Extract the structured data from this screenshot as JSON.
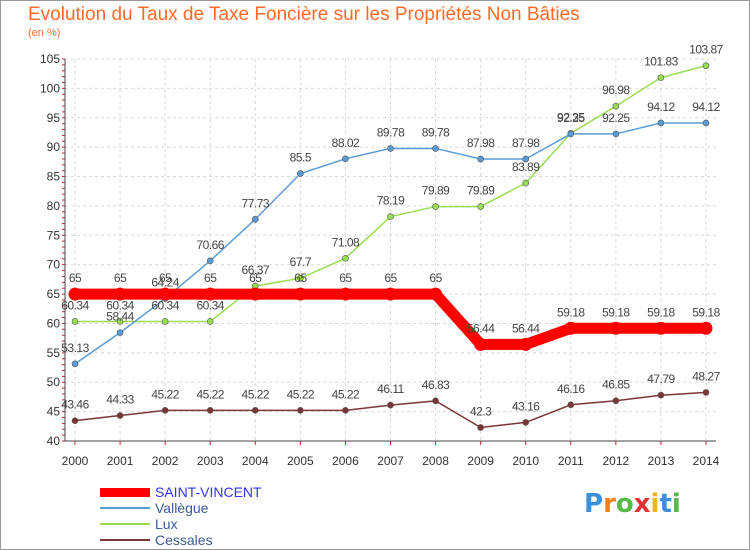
{
  "chart_data": {
    "type": "line",
    "title": "Evolution du Taux de Taxe Foncière sur les Propriétés Non Bâties",
    "subtitle": "(en %)",
    "x": [
      "2000",
      "2001",
      "2002",
      "2003",
      "2004",
      "2005",
      "2006",
      "2007",
      "2008",
      "2009",
      "2010",
      "2011",
      "2012",
      "2013",
      "2014"
    ],
    "ylim": [
      40,
      105
    ],
    "yticks": [
      40,
      45,
      50,
      55,
      60,
      65,
      70,
      75,
      80,
      85,
      90,
      95,
      100,
      105
    ],
    "grid": true,
    "legend_position": "bottom-left",
    "series": [
      {
        "name": "SAINT-VINCENT",
        "color": "#ff0000",
        "values": [
          65,
          65,
          65,
          65,
          65,
          65,
          65,
          65,
          65,
          56.44,
          56.44,
          59.18,
          59.18,
          59.18,
          59.18
        ],
        "labels": [
          "65",
          "65",
          "65",
          "65",
          "65",
          "65",
          "65",
          "65",
          "65",
          "56.44",
          "56.44",
          "59.18",
          "59.18",
          "59.18",
          "59.18"
        ]
      },
      {
        "name": "Vallègue",
        "color": "#5b9bd5",
        "values": [
          53.13,
          58.44,
          64.24,
          70.66,
          77.73,
          85.5,
          88.02,
          89.78,
          89.78,
          87.98,
          87.98,
          92.25,
          92.25,
          94.12,
          94.12
        ],
        "labels": [
          "53.13",
          "58.44",
          "64.24",
          "70.66",
          "77.73",
          "85.5",
          "88.02",
          "89.78",
          "89.78",
          "87.98",
          "87.98",
          "92.25",
          "92.25",
          "94.12",
          "94.12"
        ]
      },
      {
        "name": "Lux",
        "color": "#99dd55",
        "values": [
          60.34,
          60.34,
          60.34,
          60.34,
          66.37,
          67.7,
          71.08,
          78.19,
          79.89,
          79.89,
          83.89,
          92.35,
          96.98,
          101.83,
          103.87
        ],
        "labels": [
          "60.34",
          "60.34",
          "60.34",
          "60.34",
          "66.37",
          "67.7",
          "71.08",
          "78.19",
          "79.89",
          "79.89",
          "83.89",
          "92.35",
          "96.98",
          "101.83",
          "103.87"
        ]
      },
      {
        "name": "Cessales",
        "color": "#7a3535",
        "values": [
          43.46,
          44.33,
          45.22,
          45.22,
          45.22,
          45.22,
          45.22,
          46.11,
          46.83,
          42.3,
          43.16,
          46.16,
          46.85,
          47.79,
          48.27
        ],
        "labels": [
          "43.46",
          "44.33",
          "45.22",
          "45.22",
          "45.22",
          "45.22",
          "45.22",
          "46.11",
          "46.83",
          "42.3",
          "43.16",
          "46.16",
          "46.85",
          "47.79",
          "48.27"
        ]
      }
    ]
  },
  "branding": {
    "letters": [
      "P",
      "r",
      "o",
      "x",
      "i",
      "t",
      "i"
    ],
    "colors": [
      "#3d8fd8",
      "#f07f1f",
      "#57b947",
      "#e03434",
      "#f0b21f",
      "#3d8fd8",
      "#57b947"
    ]
  }
}
